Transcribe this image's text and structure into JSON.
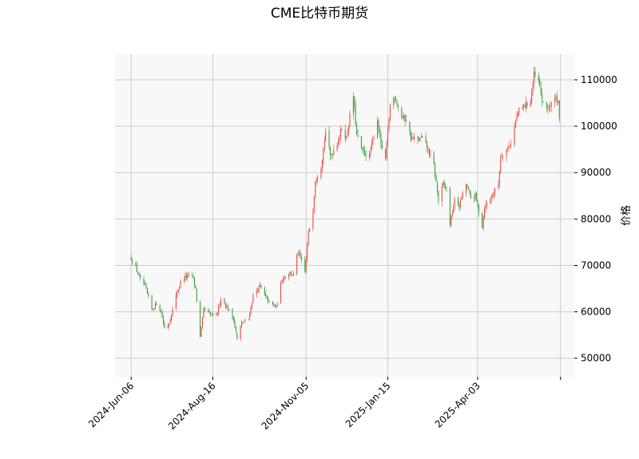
{
  "chart_data": {
    "type": "candlestick",
    "title": "CME比特币期货",
    "xlabel": "",
    "ylabel": "价格",
    "y_axis_side": "right",
    "ylim": [
      46000,
      115500
    ],
    "y_ticks": [
      50000,
      60000,
      70000,
      80000,
      90000,
      100000,
      110000
    ],
    "y_tick_labels": [
      "50000",
      "60000",
      "70000",
      "80000",
      "90000",
      "100000",
      "110000"
    ],
    "x_range": [
      "2024-05-23",
      "2025-06-26"
    ],
    "x_ticks": [
      "2024-06-06",
      "2024-08-16",
      "2024-11-05",
      "2025-01-15",
      "2025-04-03",
      "2025-06-14"
    ],
    "x_tick_labels": [
      "2024-Jun-06",
      "2024-Aug-16",
      "2024-Nov-05",
      "2025-Jan-15",
      "2025-Apr-03",
      ""
    ],
    "grid": true,
    "colors": {
      "up": "#e8413a",
      "down": "#2e9a2e",
      "grid": "#cccccc",
      "background": "#f8f8f8"
    },
    "close_series": [
      [
        "2024-06-06",
        71500
      ],
      [
        "2024-06-10",
        69500
      ],
      [
        "2024-06-14",
        66800
      ],
      [
        "2024-06-18",
        65500
      ],
      [
        "2024-06-24",
        60500
      ],
      [
        "2024-06-28",
        61800
      ],
      [
        "2024-07-02",
        60000
      ],
      [
        "2024-07-05",
        56500
      ],
      [
        "2024-07-09",
        57500
      ],
      [
        "2024-07-15",
        63500
      ],
      [
        "2024-07-19",
        66500
      ],
      [
        "2024-07-23",
        67500
      ],
      [
        "2024-07-29",
        68000
      ],
      [
        "2024-08-01",
        65000
      ],
      [
        "2024-08-05",
        54500
      ],
      [
        "2024-08-08",
        60500
      ],
      [
        "2024-08-13",
        59500
      ],
      [
        "2024-08-19",
        59000
      ],
      [
        "2024-08-23",
        63000
      ],
      [
        "2024-08-27",
        61500
      ],
      [
        "2024-09-03",
        58500
      ],
      [
        "2024-09-06",
        54000
      ],
      [
        "2024-09-10",
        57500
      ],
      [
        "2024-09-16",
        58500
      ],
      [
        "2024-09-20",
        63500
      ],
      [
        "2024-09-26",
        65500
      ],
      [
        "2024-09-30",
        63500
      ],
      [
        "2024-10-04",
        62000
      ],
      [
        "2024-10-10",
        61000
      ],
      [
        "2024-10-15",
        67000
      ],
      [
        "2024-10-21",
        68500
      ],
      [
        "2024-10-25",
        68000
      ],
      [
        "2024-10-29",
        73000
      ],
      [
        "2024-11-04",
        68500
      ],
      [
        "2024-11-07",
        77000
      ],
      [
        "2024-11-11",
        82000
      ],
      [
        "2024-11-13",
        88500
      ],
      [
        "2024-11-18",
        91500
      ],
      [
        "2024-11-22",
        99000
      ],
      [
        "2024-11-26",
        93500
      ],
      [
        "2024-12-02",
        96500
      ],
      [
        "2024-12-06",
        99500
      ],
      [
        "2024-12-10",
        97500
      ],
      [
        "2024-12-16",
        106500
      ],
      [
        "2024-12-19",
        98000
      ],
      [
        "2024-12-24",
        94500
      ],
      [
        "2024-12-30",
        93500
      ],
      [
        "2025-01-06",
        101500
      ],
      [
        "2025-01-10",
        94500
      ],
      [
        "2025-01-13",
        93000
      ],
      [
        "2025-01-17",
        104500
      ],
      [
        "2025-01-21",
        106500
      ],
      [
        "2025-01-27",
        102000
      ],
      [
        "2025-01-31",
        101500
      ],
      [
        "2025-02-04",
        97500
      ],
      [
        "2025-02-10",
        97000
      ],
      [
        "2025-02-14",
        97500
      ],
      [
        "2025-02-18",
        95500
      ],
      [
        "2025-02-24",
        91500
      ],
      [
        "2025-02-28",
        84000
      ],
      [
        "2025-03-04",
        87500
      ],
      [
        "2025-03-07",
        86500
      ],
      [
        "2025-03-10",
        79000
      ],
      [
        "2025-03-14",
        84000
      ],
      [
        "2025-03-18",
        83000
      ],
      [
        "2025-03-24",
        87500
      ],
      [
        "2025-03-28",
        84500
      ],
      [
        "2025-04-01",
        85000
      ],
      [
        "2025-04-07",
        78500
      ],
      [
        "2025-04-09",
        82500
      ],
      [
        "2025-04-14",
        84500
      ],
      [
        "2025-04-21",
        87500
      ],
      [
        "2025-04-23",
        93500
      ],
      [
        "2025-04-28",
        95000
      ],
      [
        "2025-05-02",
        96500
      ],
      [
        "2025-05-08",
        103000
      ],
      [
        "2025-05-12",
        104000
      ],
      [
        "2025-05-19",
        105500
      ],
      [
        "2025-05-22",
        111000
      ],
      [
        "2025-05-26",
        109500
      ],
      [
        "2025-05-30",
        104500
      ],
      [
        "2025-06-05",
        104000
      ],
      [
        "2025-06-09",
        106500
      ],
      [
        "2025-06-12",
        105500
      ],
      [
        "2025-06-13",
        101000
      ]
    ]
  }
}
